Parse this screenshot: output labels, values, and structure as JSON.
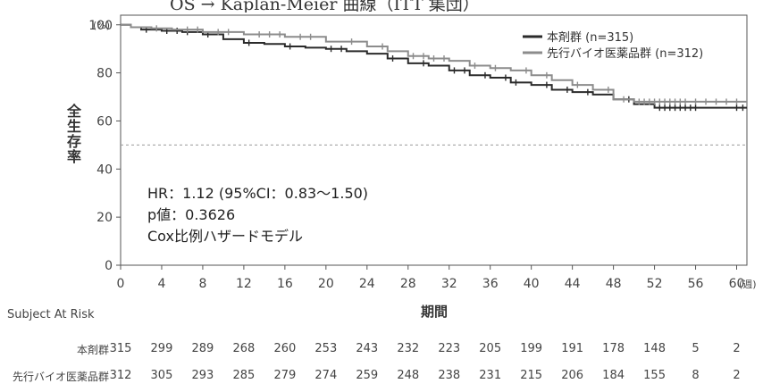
{
  "title": "OS → Kaplan-Meier 曲線（ITT 集団）",
  "chart_data": {
    "type": "line",
    "subtype": "kaplan-meier",
    "xlabel": "期間",
    "x_unit": "(週)",
    "ylabel": "全生存率",
    "y_unit": "(%)",
    "xlim": [
      0,
      61
    ],
    "ylim": [
      0,
      104
    ],
    "x_ticks": [
      0,
      4,
      8,
      12,
      16,
      20,
      24,
      28,
      32,
      36,
      40,
      44,
      48,
      52,
      56,
      60
    ],
    "y_ticks": [
      0,
      20,
      40,
      60,
      80,
      100
    ],
    "reference_line_y": 50,
    "legend_position": "top-right",
    "annotations": [
      "HR：1.12 (95%CI：0.83～1.50)",
      "p値：0.3626",
      "Cox比例ハザードモデル"
    ],
    "series": [
      {
        "name": "本剤群 (n=315)",
        "color": "#2b2b2b",
        "steps": [
          [
            0,
            100
          ],
          [
            1,
            99
          ],
          [
            2,
            98
          ],
          [
            4,
            97.5
          ],
          [
            6,
            97
          ],
          [
            8,
            96
          ],
          [
            10,
            94
          ],
          [
            12,
            92.5
          ],
          [
            14,
            92
          ],
          [
            16,
            91
          ],
          [
            18,
            90.5
          ],
          [
            20,
            90
          ],
          [
            22,
            89
          ],
          [
            24,
            88
          ],
          [
            26,
            86
          ],
          [
            28,
            84
          ],
          [
            30,
            83
          ],
          [
            32,
            81
          ],
          [
            34,
            79
          ],
          [
            36,
            78
          ],
          [
            38,
            76
          ],
          [
            40,
            75
          ],
          [
            42,
            73
          ],
          [
            44,
            72
          ],
          [
            46,
            71
          ],
          [
            48,
            69
          ],
          [
            50,
            67
          ],
          [
            52,
            65.5
          ],
          [
            56,
            65.5
          ],
          [
            61,
            65.5
          ]
        ],
        "censor_x": [
          2.5,
          4.5,
          5.5,
          6.5,
          8.5,
          12.5,
          16.5,
          20.5,
          21.5,
          26.5,
          29.5,
          32.5,
          33.5,
          35.5,
          37.5,
          38.5,
          41.5,
          43.5,
          45.5,
          49.5,
          52.5,
          53,
          53.5,
          54,
          54.5,
          55,
          55.5,
          56,
          60,
          60.6
        ]
      },
      {
        "name": "先行バイオ医薬品群 (n=312)",
        "color": "#8c8c8c",
        "steps": [
          [
            0,
            100
          ],
          [
            1,
            99
          ],
          [
            3,
            98.5
          ],
          [
            5,
            98
          ],
          [
            8,
            97
          ],
          [
            12,
            96
          ],
          [
            16,
            95
          ],
          [
            20,
            93
          ],
          [
            24,
            91
          ],
          [
            26,
            89
          ],
          [
            28,
            87
          ],
          [
            30,
            86
          ],
          [
            32,
            85
          ],
          [
            34,
            83
          ],
          [
            36,
            82
          ],
          [
            38,
            81
          ],
          [
            40,
            79
          ],
          [
            42,
            77
          ],
          [
            44,
            75
          ],
          [
            46,
            73
          ],
          [
            48,
            69
          ],
          [
            50,
            68
          ],
          [
            52,
            68
          ],
          [
            61,
            68
          ]
        ],
        "censor_x": [
          3.5,
          6.5,
          7.5,
          9.5,
          10.5,
          13.5,
          14.5,
          15.5,
          17.5,
          18.5,
          22.5,
          25.5,
          28.5,
          29.5,
          30.5,
          31.5,
          34.5,
          36.5,
          39.5,
          41.5,
          44.5,
          47.5,
          49,
          50.5,
          51,
          51.5,
          52,
          52.5,
          53,
          53.5,
          54,
          54.5,
          55,
          56,
          57,
          58,
          59,
          60
        ]
      }
    ]
  },
  "risk_table": {
    "header": "Subject At Risk",
    "times": [
      0,
      4,
      8,
      12,
      16,
      20,
      24,
      28,
      32,
      36,
      40,
      44,
      48,
      52,
      56,
      60
    ],
    "rows": [
      {
        "label": "本剤群",
        "values": [
          "315",
          "299",
          "289",
          "268",
          "260",
          "253",
          "243",
          "232",
          "223",
          "205",
          "199",
          "191",
          "178",
          "148",
          "5",
          "2"
        ]
      },
      {
        "label": "先行バイオ医薬品群",
        "values": [
          "312",
          "305",
          "293",
          "285",
          "279",
          "274",
          "259",
          "248",
          "238",
          "231",
          "215",
          "206",
          "184",
          "155",
          "8",
          "2"
        ]
      }
    ]
  }
}
